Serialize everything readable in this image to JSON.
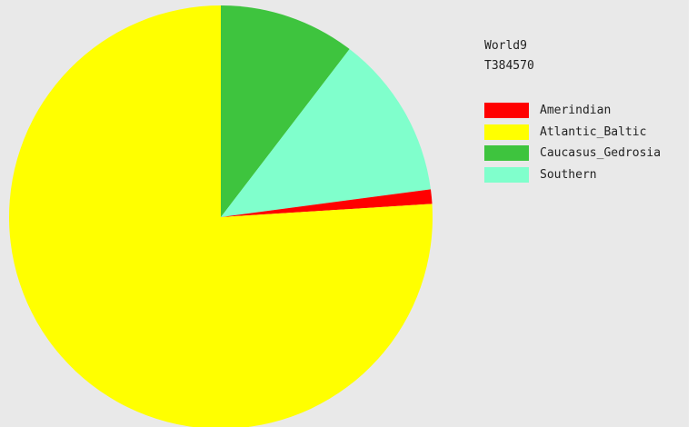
{
  "chart_data": {
    "type": "pie",
    "title": "World9",
    "subtitle": "T384570",
    "slices": [
      {
        "label": "Caucasus_Gedrosia",
        "value": 10.4,
        "color": "#3ec43e"
      },
      {
        "label": "Southern",
        "value": 12.5,
        "color": "#80ffcc"
      },
      {
        "label": "Amerindian",
        "value": 1.1,
        "color": "#ff0000"
      },
      {
        "label": "Atlantic_Baltic",
        "value": 76.0,
        "color": "#ffff00"
      }
    ],
    "start_angle_deg": 0,
    "direction": "clockwise",
    "legend": {
      "placement": "right",
      "entries": [
        {
          "label": "Amerindian",
          "color": "#ff0000"
        },
        {
          "label": "Atlantic_Baltic",
          "color": "#ffff00"
        },
        {
          "label": "Caucasus_Gedrosia",
          "color": "#3ec43e"
        },
        {
          "label": "Southern",
          "color": "#80ffcc"
        }
      ]
    }
  }
}
